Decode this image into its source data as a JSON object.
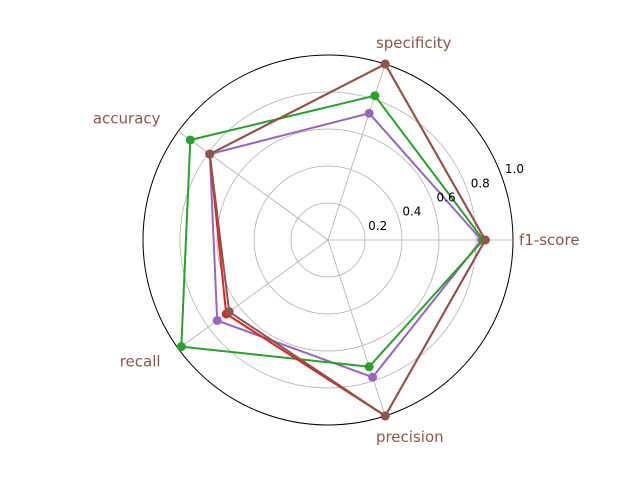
{
  "chart_data": {
    "type": "radar",
    "axes": [
      "f1-score",
      "specificity",
      "accuracy",
      "recall",
      "precision"
    ],
    "r_ticks": [
      "0.2",
      "0.4",
      "0.6",
      "0.8",
      "1.0"
    ],
    "r_tick_values": [
      0.2,
      0.4,
      0.6,
      0.8,
      1.0
    ],
    "r_range": [
      0,
      1.0
    ],
    "grid": true,
    "label_color": "#8c564b",
    "series": [
      {
        "color": "#9467bd",
        "values": [
          0.83,
          0.72,
          0.79,
          0.74,
          0.78
        ]
      },
      {
        "color": "#2ca02c",
        "values": [
          0.84,
          0.82,
          0.92,
          0.98,
          0.72
        ]
      },
      {
        "color": "#d62728",
        "values": [
          0.85,
          1.0,
          0.79,
          0.68,
          1.0
        ]
      },
      {
        "color": "#8c564b",
        "values": [
          0.85,
          1.0,
          0.79,
          0.66,
          1.0
        ]
      }
    ]
  }
}
